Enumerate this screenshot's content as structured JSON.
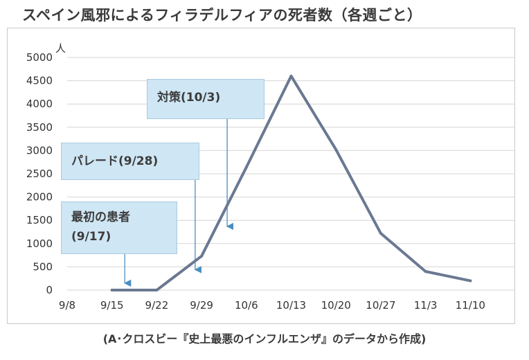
{
  "chart_data": {
    "type": "line",
    "title": "スペイン風邪によるフィラデルフィアの死者数（各週ごと）",
    "ylabel": "人",
    "xlabel": "",
    "ylim": [
      0,
      5000
    ],
    "yticks": [
      "0",
      "500",
      "1000",
      "1500",
      "2000",
      "2500",
      "3000",
      "3500",
      "4000",
      "4500",
      "5000"
    ],
    "categories": [
      "9/8",
      "9/15",
      "9/22",
      "9/29",
      "10/6",
      "10/13",
      "10/20",
      "10/27",
      "11/3",
      "11/10"
    ],
    "series": [
      {
        "x": [
          "9/15",
          "9/22",
          "9/29",
          "10/6",
          "10/13",
          "10/20",
          "10/27",
          "11/3",
          "11/10"
        ],
        "values": [
          0,
          0,
          730,
          2640,
          4600,
          3020,
          1220,
          400,
          200
        ],
        "color": "#6a7892"
      }
    ],
    "grid": true,
    "annotations": [
      {
        "lines": [
          "最初の患者",
          "(9/17)"
        ],
        "target_x": "9/17"
      },
      {
        "lines": [
          "パレード(9/28)"
        ],
        "target_x": "9/28"
      },
      {
        "lines": [
          "対策(10/3)"
        ],
        "target_x": "10/3"
      }
    ],
    "source": "(A･クロスビー『史上最悪のインフルエンザ』のデータから作成)"
  },
  "colors": {
    "line": "#6a7892",
    "callout_fill": "#cfe6f4",
    "grid": "#d4d4d4"
  }
}
